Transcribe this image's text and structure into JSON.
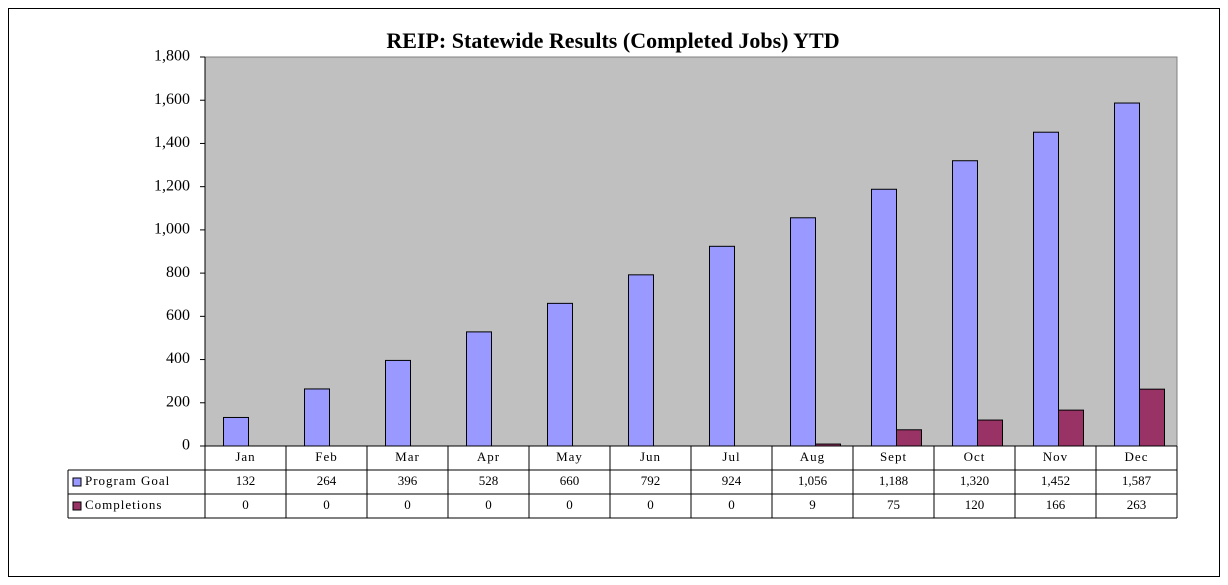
{
  "chart_data": {
    "type": "bar",
    "title": "REIP: Statewide Results (Completed Jobs) YTD",
    "categories": [
      "Jan",
      "Feb",
      "Mar",
      "Apr",
      "May",
      "Jun",
      "Jul",
      "Aug",
      "Sept",
      "Oct",
      "Nov",
      "Dec"
    ],
    "series": [
      {
        "name": "Program Goal",
        "color": "#9999ff",
        "values": [
          132,
          264,
          396,
          528,
          660,
          792,
          924,
          1056,
          1188,
          1320,
          1452,
          1587
        ],
        "value_labels": [
          "132",
          "264",
          "396",
          "528",
          "660",
          "792",
          "924",
          "1,056",
          "1,188",
          "1,320",
          "1,452",
          "1,587"
        ]
      },
      {
        "name": "Completions",
        "color": "#993366",
        "values": [
          0,
          0,
          0,
          0,
          0,
          0,
          0,
          9,
          75,
          120,
          166,
          263
        ]
      }
    ],
    "ylim": [
      0,
      1800
    ],
    "yticks": [
      0,
      200,
      400,
      600,
      800,
      {
        "value": 1000,
        "label": "1,000"
      },
      {
        "value": 1200,
        "label": "1,200"
      },
      {
        "value": 1400,
        "label": "1,400"
      },
      {
        "value": 1600,
        "label": "1,600"
      },
      {
        "value": 1800,
        "label": "1,800"
      }
    ],
    "plot_background": "#c0c0c0"
  }
}
